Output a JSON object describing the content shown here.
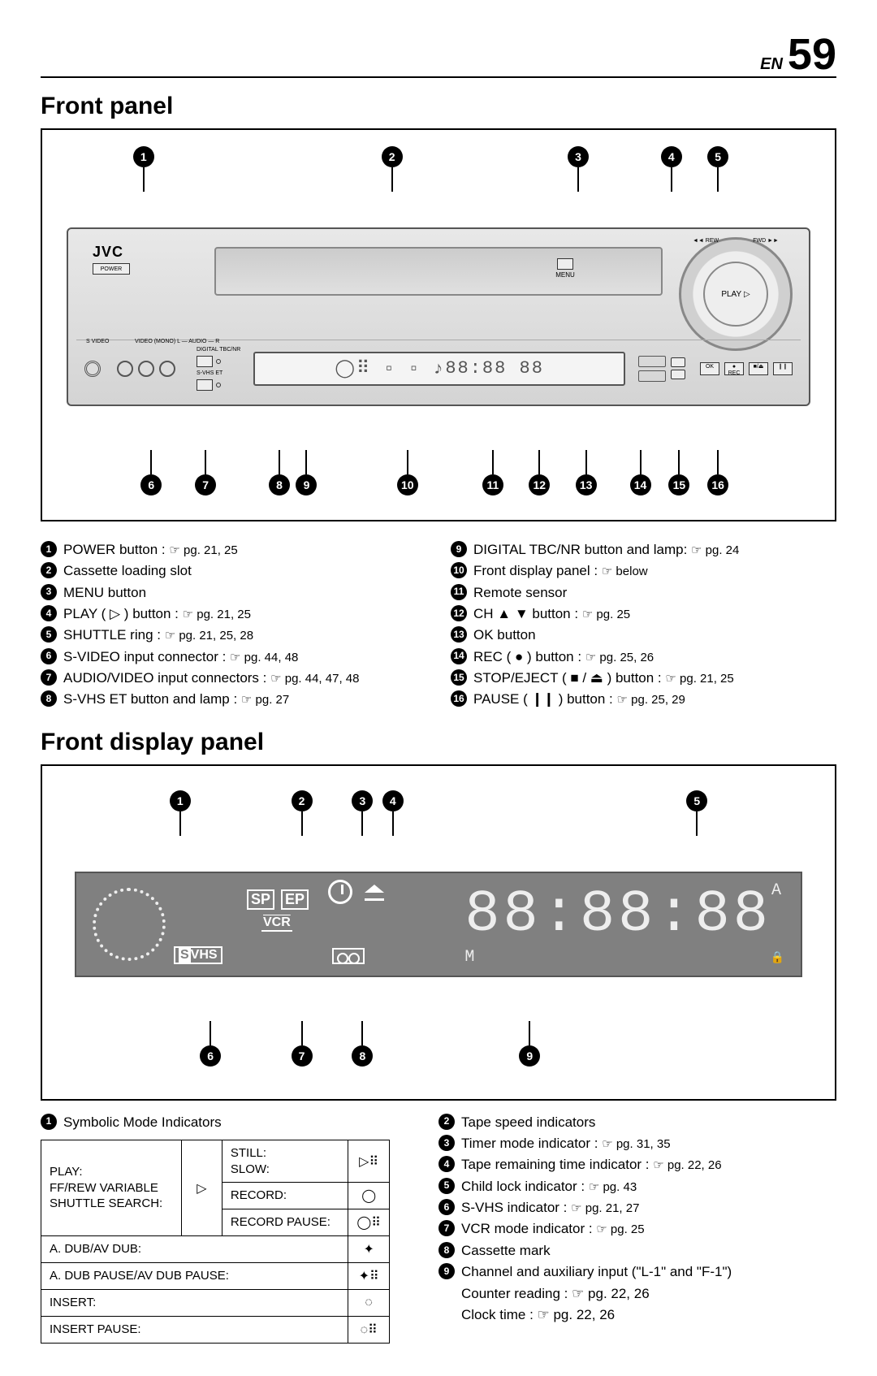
{
  "page": {
    "lang_prefix": "EN",
    "number": "59"
  },
  "section1": {
    "title": "Front panel"
  },
  "vcr": {
    "logo": "JVC",
    "power_label": "POWER",
    "menu_label": "MENU",
    "jog": {
      "play_label": "PLAY",
      "rew_label": "◄◄ REW",
      "fwd_label": "FWD ►►",
      "play_icon": "▷"
    },
    "s_video_label": "S VIDEO",
    "av_label": "VIDEO (MONO) L — AUDIO — R",
    "svhs_btn": "S-VHS ET",
    "tbc_btn": "DIGITAL TBC/NR",
    "digits": "88:88 88",
    "ok_label": "OK",
    "rec_label": "REC",
    "stop_label": "STOP/EJECT",
    "pause_label": "PAUSE"
  },
  "callouts_top": [
    "1",
    "2",
    "3",
    "4",
    "5"
  ],
  "callouts_top_pos": [
    12,
    44,
    68,
    80,
    86
  ],
  "callouts_bottom": [
    "6",
    "7",
    "8",
    "9",
    "10",
    "11",
    "12",
    "13",
    "14",
    "15",
    "16"
  ],
  "legend_left": [
    {
      "n": "1",
      "t": "POWER button : ",
      "pg": "☞ pg. 21, 25"
    },
    {
      "n": "2",
      "t": "Cassette loading slot",
      "pg": ""
    },
    {
      "n": "3",
      "t": "MENU button",
      "pg": ""
    },
    {
      "n": "4",
      "t": "PLAY ( ▷ ) button : ",
      "pg": "☞ pg. 21, 25"
    },
    {
      "n": "5",
      "t": "SHUTTLE ring : ",
      "pg": "☞ pg. 21, 25, 28"
    },
    {
      "n": "6",
      "t": "S-VIDEO input connector : ",
      "pg": "☞ pg. 44, 48"
    },
    {
      "n": "7",
      "t": "AUDIO/VIDEO input connectors : ",
      "pg": "☞ pg. 44, 47, 48"
    },
    {
      "n": "8",
      "t": "S-VHS ET button and lamp : ",
      "pg": "☞ pg. 27"
    }
  ],
  "legend_right": [
    {
      "n": "9",
      "t": "DIGITAL TBC/NR button and lamp: ",
      "pg": "☞ pg. 24"
    },
    {
      "n": "10",
      "t": "Front display panel : ",
      "pg": "☞ below"
    },
    {
      "n": "11",
      "t": "Remote sensor",
      "pg": ""
    },
    {
      "n": "12",
      "t": "CH ▲ ▼ button : ",
      "pg": "☞ pg. 25"
    },
    {
      "n": "13",
      "t": "OK button",
      "pg": ""
    },
    {
      "n": "14",
      "t": "REC ( ● ) button : ",
      "pg": "☞ pg. 25, 26"
    },
    {
      "n": "15",
      "t": "STOP/EJECT ( ■ / ⏏ ) button : ",
      "pg": "☞ pg. 21, 25"
    },
    {
      "n": "16",
      "t": "PAUSE ( ❙❙ ) button : ",
      "pg": "☞ pg. 25, 29"
    }
  ],
  "section2": {
    "title": "Front display panel"
  },
  "fdp_callouts_top": [
    "1",
    "2",
    "3",
    "4",
    "5"
  ],
  "fdp_callouts_top_pos": [
    16,
    32,
    40,
    44,
    84
  ],
  "fdp_callouts_bottom": [
    "6",
    "7",
    "8",
    "9"
  ],
  "fdp_callouts_bottom_pos": [
    20,
    32,
    40,
    62
  ],
  "fdp_display": {
    "sp": "SP",
    "ep": "EP",
    "vcr": "VCR",
    "svhs_s": "S",
    "svhs_vhs": "VHS",
    "digits": "88:88:88",
    "am": "A",
    "pm": "M"
  },
  "symbolic_heading": "Symbolic Mode Indicators",
  "ind_table": {
    "r1c1": "PLAY:\nFF/REW VARIABLE\nSHUTTLE SEARCH:",
    "r1_icon": "▷",
    "r2c1": "STILL:\nSLOW:",
    "r2_icon": "▷⠿",
    "r3c1": "RECORD:",
    "r3_icon": "◯",
    "r4c1": "RECORD PAUSE:",
    "r4_icon": "◯⠿",
    "r5c1": "A. DUB/AV DUB:",
    "r5_icon": "✦",
    "r6c1": "A. DUB PAUSE/AV DUB PAUSE:",
    "r6_icon": "✦⠿",
    "r7c1": "INSERT:",
    "r7_icon": "◌",
    "r8c1": "INSERT PAUSE:",
    "r8_icon": "◌⠿"
  },
  "fdp_legend_right": [
    {
      "n": "2",
      "t": "Tape speed indicators",
      "pg": ""
    },
    {
      "n": "3",
      "t": "Timer mode indicator : ",
      "pg": "☞ pg. 31, 35"
    },
    {
      "n": "4",
      "t": "Tape remaining time indicator : ",
      "pg": "☞ pg. 22, 26"
    },
    {
      "n": "5",
      "t": "Child lock indicator : ",
      "pg": "☞ pg. 43"
    },
    {
      "n": "6",
      "t": "S-VHS indicator : ",
      "pg": "☞ pg. 21, 27"
    },
    {
      "n": "7",
      "t": "VCR mode indicator : ",
      "pg": "☞ pg. 25"
    },
    {
      "n": "8",
      "t": "Cassette mark",
      "pg": ""
    },
    {
      "n": "9",
      "t": "Channel and auxiliary input (\"L-1\" and \"F-1\")",
      "pg": ""
    }
  ],
  "fdp_legend_extra": [
    "Counter reading : ☞ pg. 22, 26",
    "Clock time : ☞ pg. 22, 26"
  ],
  "fdp_item1": {
    "n": "1",
    "t": "Symbolic Mode Indicators"
  }
}
